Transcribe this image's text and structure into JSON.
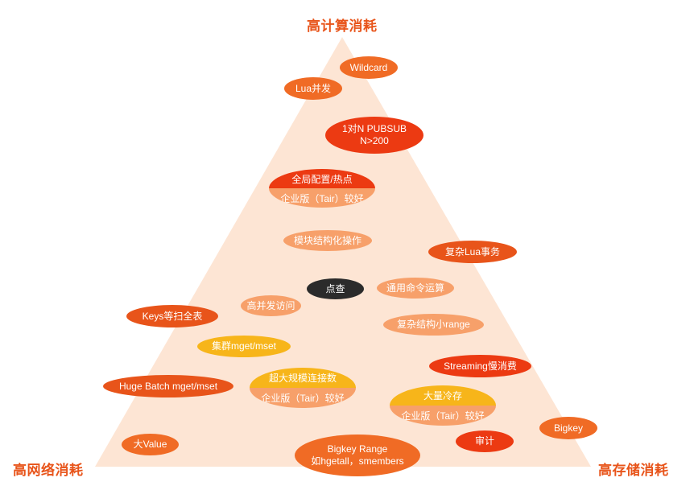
{
  "corners": {
    "top": "高计算消耗",
    "left": "高网络消耗",
    "right": "高存储消耗"
  },
  "colors": {
    "triangle": "#fde5d4",
    "orange_red": "#e8541a",
    "orange": "#f06b25",
    "light_orange": "#f7a06a",
    "red": "#ec3a12",
    "yellow": "#f7b51a",
    "black": "#2b2b2b"
  },
  "items": {
    "wildcard": "Wildcard",
    "lua_concurrency": "Lua并发",
    "pubsub_line1": "1对N PUBSUB",
    "pubsub_line2": "N>200",
    "global_config": "全局配置/热点",
    "global_config_tair": "企业版（Tair）较好",
    "module_ops": "模块结构化操作",
    "complex_lua": "复杂Lua事务",
    "point_query": "点查",
    "general_cmd": "通用命令运算",
    "high_concurrency": "高并发访问",
    "keys_scan": "Keys等扫全表",
    "complex_range": "复杂结构小range",
    "cluster_mget": "集群mget/mset",
    "streaming": "Streaming慢消费",
    "huge_batch": "Huge Batch mget/mset",
    "large_conn": "超大规模连接数",
    "large_conn_tair": "企业版（Tair）较好",
    "cold_storage": "大量冷存",
    "cold_storage_tair": "企业版（Tair）较好",
    "bigkey": "Bigkey",
    "big_value": "大Value",
    "bigkey_range_line1": "Bigkey Range",
    "bigkey_range_line2": "如hgetall，smembers",
    "audit": "审计"
  }
}
